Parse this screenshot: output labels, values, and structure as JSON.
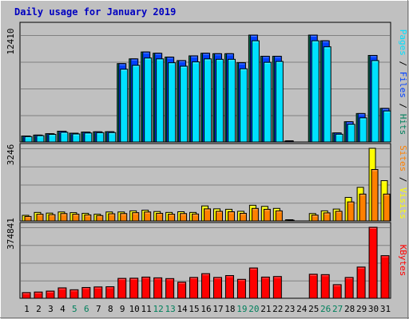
{
  "title": "Daily usage for January 2019",
  "colors": {
    "background": "#C0C0C0",
    "panel": "#C0C0C0",
    "grid": "#808080",
    "hits": "#00805C",
    "files": "#0040FF",
    "pages": "#00E0FF",
    "visits": "#FFFF00",
    "sites": "#FF8000",
    "kbytes": "#FF0000",
    "title": "#0000C0",
    "weekend": "#00805C",
    "weekday": "#000000"
  },
  "chart_data": [
    {
      "type": "bar",
      "panel": "hits-files-pages",
      "y_max_label": "12410",
      "ylim": [
        0,
        12410
      ],
      "legend_parts": [
        {
          "text": "Pages",
          "color": "#00E0FF"
        },
        {
          "text": " / ",
          "color": "#000000"
        },
        {
          "text": "Files",
          "color": "#0040FF"
        },
        {
          "text": " / ",
          "color": "#000000"
        },
        {
          "text": "Hits",
          "color": "#00805C"
        }
      ],
      "series": [
        {
          "name": "Hits",
          "color": "#00805C",
          "values": [
            690,
            800,
            960,
            1250,
            1020,
            1150,
            1180,
            1190,
            9100,
            9650,
            10450,
            10300,
            9850,
            9450,
            10000,
            10300,
            10250,
            10250,
            9200,
            12410,
            9950,
            9950,
            100,
            0,
            12410,
            11750,
            1050,
            2350,
            3300,
            10050,
            3900
          ]
        },
        {
          "name": "Files",
          "color": "#0040FF",
          "values": [
            690,
            800,
            960,
            1250,
            1020,
            1150,
            1180,
            1190,
            9100,
            9650,
            10450,
            10300,
            9850,
            9450,
            10000,
            10300,
            10250,
            10250,
            9200,
            12410,
            9950,
            9950,
            100,
            0,
            12410,
            11750,
            1050,
            2350,
            3300,
            10050,
            3900
          ]
        },
        {
          "name": "Pages",
          "color": "#00E0FF",
          "values": [
            620,
            730,
            880,
            1120,
            930,
            1040,
            1080,
            1090,
            8450,
            8900,
            9750,
            9650,
            9200,
            8800,
            9300,
            9650,
            9600,
            9600,
            8500,
            11750,
            9250,
            9350,
            0,
            0,
            11750,
            11050,
            900,
            2050,
            2800,
            9450,
            3600
          ]
        }
      ]
    },
    {
      "type": "bar",
      "panel": "visits-sites",
      "y_max_label": "3246",
      "ylim": [
        0,
        3246
      ],
      "legend_parts": [
        {
          "text": "Sites",
          "color": "#FF8000"
        },
        {
          "text": " / ",
          "color": "#000000"
        },
        {
          "text": "Visits",
          "color": "#FFFF00"
        }
      ],
      "series": [
        {
          "name": "Visits",
          "color": "#FFFF00",
          "values": [
            250,
            380,
            350,
            400,
            370,
            340,
            300,
            400,
            400,
            450,
            480,
            420,
            380,
            410,
            380,
            670,
            540,
            520,
            430,
            700,
            650,
            560,
            40,
            0,
            330,
            450,
            530,
            1050,
            1500,
            3246,
            1800
          ]
        },
        {
          "name": "Sites",
          "color": "#FF8000",
          "values": [
            200,
            300,
            280,
            330,
            300,
            270,
            240,
            320,
            330,
            370,
            400,
            340,
            300,
            330,
            310,
            540,
            430,
            410,
            340,
            560,
            520,
            450,
            30,
            0,
            260,
            360,
            430,
            850,
            1200,
            2300,
            1200
          ]
        }
      ]
    },
    {
      "type": "bar",
      "panel": "kbytes",
      "y_max_label": "374841",
      "ylim": [
        0,
        374841
      ],
      "legend_parts": [
        {
          "text": "KBytes",
          "color": "#FF0000"
        }
      ],
      "series": [
        {
          "name": "KBytes",
          "color": "#FF0000",
          "values": [
            30000,
            33000,
            38000,
            55000,
            45000,
            57000,
            60000,
            61000,
            105000,
            106000,
            112000,
            108000,
            104000,
            85000,
            110000,
            130000,
            110000,
            120000,
            100000,
            160000,
            112000,
            115000,
            0,
            0,
            127000,
            125000,
            72000,
            110000,
            165000,
            374841,
            225000
          ]
        }
      ]
    }
  ],
  "days": [
    {
      "label": "1",
      "weekend": false
    },
    {
      "label": "2",
      "weekend": false
    },
    {
      "label": "3",
      "weekend": false
    },
    {
      "label": "4",
      "weekend": false
    },
    {
      "label": "5",
      "weekend": true
    },
    {
      "label": "6",
      "weekend": true
    },
    {
      "label": "7",
      "weekend": false
    },
    {
      "label": "8",
      "weekend": false
    },
    {
      "label": "9",
      "weekend": false
    },
    {
      "label": "10",
      "weekend": false
    },
    {
      "label": "11",
      "weekend": false
    },
    {
      "label": "12",
      "weekend": true
    },
    {
      "label": "13",
      "weekend": true
    },
    {
      "label": "14",
      "weekend": false
    },
    {
      "label": "15",
      "weekend": false
    },
    {
      "label": "16",
      "weekend": false
    },
    {
      "label": "17",
      "weekend": false
    },
    {
      "label": "18",
      "weekend": false
    },
    {
      "label": "19",
      "weekend": true
    },
    {
      "label": "20",
      "weekend": true
    },
    {
      "label": "21",
      "weekend": false
    },
    {
      "label": "22",
      "weekend": false
    },
    {
      "label": "23",
      "weekend": false
    },
    {
      "label": "24",
      "weekend": false
    },
    {
      "label": "25",
      "weekend": false
    },
    {
      "label": "26",
      "weekend": true
    },
    {
      "label": "27",
      "weekend": true
    },
    {
      "label": "28",
      "weekend": false
    },
    {
      "label": "29",
      "weekend": false
    },
    {
      "label": "30",
      "weekend": false
    },
    {
      "label": "31",
      "weekend": false
    }
  ]
}
